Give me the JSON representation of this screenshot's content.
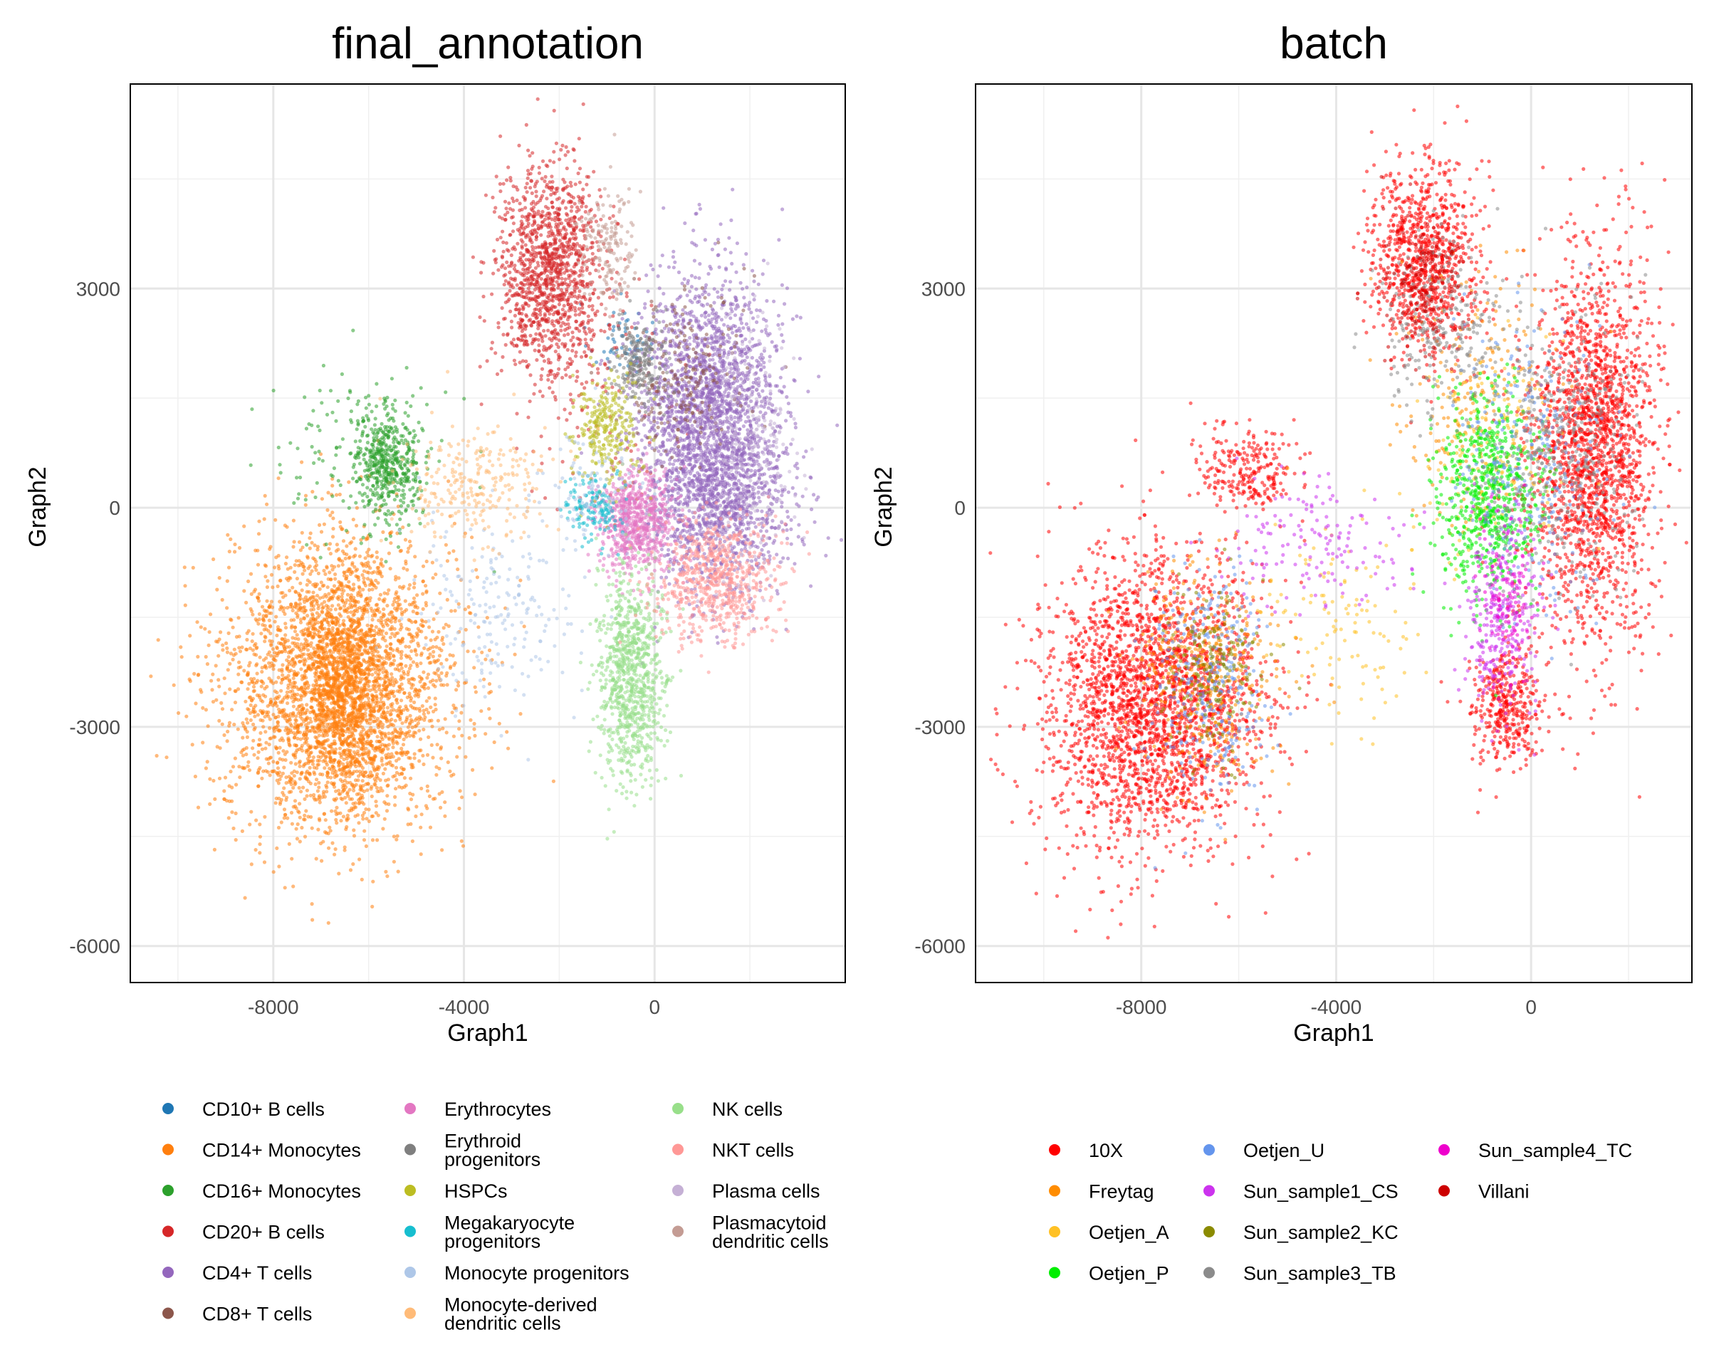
{
  "chart_data": [
    {
      "type": "scatter",
      "title": "final_annotation",
      "xlabel": "Graph1",
      "ylabel": "Graph2",
      "xlim": [
        -11000,
        4000
      ],
      "ylim": [
        -6500,
        5800
      ],
      "xticks": [
        -8000,
        -4000,
        0
      ],
      "xtick_labels": [
        "-8000",
        "-4000",
        "0"
      ],
      "yticks": [
        -6000,
        -3000,
        0,
        3000
      ],
      "ytick_labels": [
        "-6000",
        "-3000",
        "0",
        "3000"
      ],
      "grid": true,
      "legend_position": "bottom",
      "series": [
        {
          "name": "CD10+ B cells",
          "color": "#1f77b4",
          "clusters": [
            [
              -700,
              2300,
              350,
              250,
              60
            ]
          ]
        },
        {
          "name": "CD14+ Monocytes",
          "color": "#ff7f0e",
          "clusters": [
            [
              -6600,
              -2400,
              1200,
              1000,
              3200
            ],
            [
              -6500,
              -2500,
              450,
              700,
              900
            ]
          ]
        },
        {
          "name": "CD16+ Monocytes",
          "color": "#2ca02c",
          "clusters": [
            [
              -5600,
              600,
              350,
              350,
              450
            ],
            [
              -6200,
              700,
              900,
              600,
              150
            ]
          ]
        },
        {
          "name": "CD20+ B cells",
          "color": "#d62728",
          "clusters": [
            [
              -2200,
              3200,
              550,
              750,
              1300
            ],
            [
              -1000,
              1500,
              900,
              900,
              80
            ]
          ]
        },
        {
          "name": "CD4+ T cells",
          "color": "#9467bd",
          "clusters": [
            [
              1100,
              1100,
              750,
              1000,
              2600
            ],
            [
              1600,
              0,
              700,
              500,
              400
            ]
          ]
        },
        {
          "name": "CD8+ T cells",
          "color": "#8c564b",
          "clusters": [
            [
              500,
              1800,
              600,
              600,
              220
            ]
          ]
        },
        {
          "name": "Erythrocytes",
          "color": "#e377c2",
          "clusters": [
            [
              -400,
              -200,
              400,
              350,
              700
            ]
          ]
        },
        {
          "name": "Erythroid progenitors",
          "color": "#7f7f7f",
          "clusters": [
            [
              -300,
              2000,
              300,
              300,
              220
            ]
          ]
        },
        {
          "name": "HSPCs",
          "color": "#bcbd22",
          "clusters": [
            [
              -1000,
              1000,
              350,
              400,
              280
            ]
          ]
        },
        {
          "name": "Megakaryocyte progenitors",
          "color": "#17becf",
          "clusters": [
            [
              -1300,
              0,
              300,
              200,
              140
            ]
          ]
        },
        {
          "name": "Monocyte progenitors",
          "color": "#aec7e8",
          "clusters": [
            [
              -3300,
              -1500,
              900,
              700,
              200
            ],
            [
              -1200,
              300,
              500,
              400,
              100
            ]
          ]
        },
        {
          "name": "Monocyte-derived dendritic cells",
          "color": "#ffbb78",
          "clusters": [
            [
              -3800,
              300,
              800,
              400,
              260
            ]
          ]
        },
        {
          "name": "NK cells",
          "color": "#98df8a",
          "clusters": [
            [
              -500,
              -2300,
              350,
              700,
              900
            ]
          ]
        },
        {
          "name": "NKT cells",
          "color": "#ff9896",
          "clusters": [
            [
              1300,
              -1000,
              600,
              400,
              700
            ]
          ]
        },
        {
          "name": "Plasma cells",
          "color": "#c5b0d5",
          "clusters": [
            [
              2000,
              800,
              500,
              900,
              250
            ]
          ]
        },
        {
          "name": "Plasmacytoid dendritic cells",
          "color": "#c49c94",
          "clusters": [
            [
              -1000,
              3600,
              300,
              400,
              160
            ]
          ]
        }
      ]
    },
    {
      "type": "scatter",
      "title": "batch",
      "xlabel": "Graph1",
      "ylabel": "Graph2",
      "xlim": [
        -11400,
        3300
      ],
      "ylim": [
        -6500,
        5800
      ],
      "xticks": [
        -8000,
        -4000,
        0
      ],
      "xtick_labels": [
        "-8000",
        "-4000",
        "0"
      ],
      "yticks": [
        -6000,
        -3000,
        0,
        3000
      ],
      "ytick_labels": [
        "-6000",
        "-3000",
        "0",
        "3000"
      ],
      "grid": true,
      "legend_position": "bottom",
      "series": [
        {
          "name": "10X",
          "color": "#ff0000",
          "clusters": [
            [
              -7800,
              -2700,
              1100,
              1000,
              2600
            ],
            [
              -2200,
              3400,
              550,
              650,
              900
            ],
            [
              1300,
              800,
              650,
              1300,
              2000
            ],
            [
              -500,
              -2700,
              350,
              400,
              400
            ],
            [
              -5800,
              500,
              500,
              300,
              250
            ]
          ]
        },
        {
          "name": "Freytag",
          "color": "#ff8c00",
          "clusters": [
            [
              -6600,
              -2300,
              700,
              700,
              350
            ],
            [
              -1000,
              1500,
              900,
              900,
              200
            ]
          ]
        },
        {
          "name": "Oetjen_A",
          "color": "#ffc125",
          "clusters": [
            [
              -4000,
              -1500,
              800,
              600,
              120
            ],
            [
              -800,
              800,
              700,
              800,
              200
            ]
          ]
        },
        {
          "name": "Oetjen_P",
          "color": "#00ee00",
          "clusters": [
            [
              -900,
              200,
              500,
              700,
              700
            ]
          ]
        },
        {
          "name": "Oetjen_U",
          "color": "#6495ed",
          "clusters": [
            [
              -6600,
              -2400,
              600,
              800,
              300
            ],
            [
              0,
              600,
              800,
              900,
              300
            ]
          ]
        },
        {
          "name": "Sun_sample1_CS",
          "color": "#cc33ee",
          "clusters": [
            [
              -600,
              -1500,
              400,
              700,
              300
            ],
            [
              -4500,
              -500,
              900,
              500,
              150
            ]
          ]
        },
        {
          "name": "Sun_sample2_KC",
          "color": "#8b8b00",
          "clusters": [
            [
              -6500,
              -2200,
              500,
              600,
              200
            ]
          ]
        },
        {
          "name": "Sun_sample3_TB",
          "color": "#8b8b8b",
          "clusters": [
            [
              -1800,
              2500,
              600,
              600,
              250
            ],
            [
              600,
              800,
              700,
              900,
              400
            ]
          ]
        },
        {
          "name": "Sun_sample4_TC",
          "color": "#ee00cc",
          "clusters": [
            [
              -500,
              -1200,
              300,
              500,
              120
            ]
          ]
        },
        {
          "name": "Villani",
          "color": "#cd0000",
          "clusters": [
            [
              -2200,
              3000,
              400,
              500,
              200
            ]
          ]
        }
      ]
    }
  ],
  "legends": [
    {
      "columns": [
        [
          "CD10+ B cells",
          "CD14+ Monocytes",
          "CD16+ Monocytes",
          "CD20+ B cells",
          "CD4+ T cells",
          "CD8+ T cells"
        ],
        [
          "Erythrocytes",
          "Erythroid\nprogenitors",
          "HSPCs",
          "Megakaryocyte\nprogenitors",
          "Monocyte progenitors",
          "Monocyte-derived\ndendritic cells"
        ],
        [
          "NK cells",
          "NKT cells",
          "Plasma cells",
          "Plasmacytoid\ndendritic cells"
        ]
      ]
    },
    {
      "columns": [
        [
          "10X",
          "Freytag",
          "Oetjen_A",
          "Oetjen_P"
        ],
        [
          "Oetjen_U",
          "Sun_sample1_CS",
          "Sun_sample2_KC",
          "Sun_sample3_TB"
        ],
        [
          "Sun_sample4_TC",
          "Villani"
        ]
      ]
    }
  ]
}
